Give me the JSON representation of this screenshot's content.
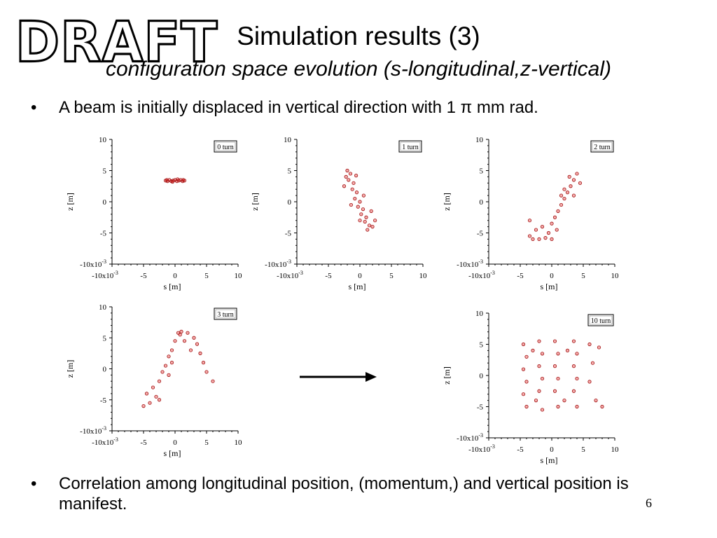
{
  "watermark": "DRAFT",
  "slide": {
    "title": "Simulation results (3)",
    "subtitle": "configuration space evolution (s-longitudinal,z-vertical)",
    "bullet1": "A beam is initially displaced in vertical direction with 1 π mm rad.",
    "bullet2": "Correlation among longitudinal position, (momentum,) and vertical position is manifest.",
    "bullet_symbol": "•",
    "page_number": "6"
  },
  "colors": {
    "marker": "#e01010",
    "marker_edge": "#a01010"
  },
  "chart_data": [
    {
      "type": "scatter",
      "legend": "0 turn",
      "xlabel": "s [m]",
      "ylabel": "z [m]",
      "xlim": [
        -0.01,
        0.01
      ],
      "ylim": [
        -0.01,
        0.01
      ],
      "xticks": [
        "-10x10-3",
        "-5",
        "0",
        "5",
        "10"
      ],
      "yticks": [
        "10",
        "5",
        "0",
        "-5",
        "-10x10-3"
      ],
      "points": [
        [
          -0.0015,
          0.0034
        ],
        [
          -0.0012,
          0.0033
        ],
        [
          -0.0009,
          0.0035
        ],
        [
          -0.0006,
          0.0033
        ],
        [
          -0.0003,
          0.0034
        ],
        [
          0.0,
          0.0035
        ],
        [
          0.0003,
          0.0033
        ],
        [
          0.0006,
          0.0034
        ],
        [
          0.0009,
          0.0035
        ],
        [
          0.0012,
          0.0033
        ],
        [
          0.0015,
          0.0034
        ],
        [
          -0.0013,
          0.0035
        ],
        [
          0.0013,
          0.0035
        ],
        [
          -0.0004,
          0.0032
        ],
        [
          0.0004,
          0.0036
        ]
      ]
    },
    {
      "type": "scatter",
      "legend": "1 turn",
      "xlabel": "s [m]",
      "ylabel": "z [m]",
      "xlim": [
        -0.01,
        0.01
      ],
      "ylim": [
        -0.01,
        0.01
      ],
      "xticks": [
        "-10x10-3",
        "-5",
        "0",
        "5",
        "10"
      ],
      "yticks": [
        "10",
        "5",
        "0",
        "-5",
        "-10x10-3"
      ],
      "points": [
        [
          -0.002,
          0.005
        ],
        [
          -0.0015,
          0.0045
        ],
        [
          -0.0018,
          0.0035
        ],
        [
          -0.001,
          0.003
        ],
        [
          -0.0012,
          0.002
        ],
        [
          -0.0005,
          0.0015
        ],
        [
          -0.0008,
          0.0005
        ],
        [
          0.0,
          0.0
        ],
        [
          -0.0003,
          -0.0008
        ],
        [
          0.0005,
          -0.0012
        ],
        [
          0.0002,
          -0.002
        ],
        [
          0.001,
          -0.0025
        ],
        [
          0.0008,
          -0.0032
        ],
        [
          0.0015,
          -0.0038
        ],
        [
          0.0012,
          -0.0045
        ],
        [
          0.002,
          -0.004
        ],
        [
          -0.0022,
          0.004
        ],
        [
          -0.0006,
          0.0042
        ],
        [
          0.0006,
          0.001
        ],
        [
          -0.0014,
          -0.0005
        ],
        [
          0.0018,
          -0.0015
        ],
        [
          0.0,
          -0.003
        ],
        [
          0.0024,
          -0.003
        ],
        [
          -0.0025,
          0.0025
        ]
      ]
    },
    {
      "type": "scatter",
      "legend": "2 turn",
      "xlabel": "s [m]",
      "ylabel": "z [m]",
      "xlim": [
        -0.01,
        0.01
      ],
      "ylim": [
        -0.01,
        0.01
      ],
      "xticks": [
        "-10x10-3",
        "-5",
        "0",
        "5",
        "10"
      ],
      "yticks": [
        "10",
        "5",
        "0",
        "-5",
        "-10x10-3"
      ],
      "points": [
        [
          -0.003,
          -0.006
        ],
        [
          -0.002,
          -0.006
        ],
        [
          -0.001,
          -0.0058
        ],
        [
          0.0,
          -0.006
        ],
        [
          -0.0025,
          -0.0045
        ],
        [
          -0.0035,
          -0.003
        ],
        [
          -0.0015,
          -0.004
        ],
        [
          0.0,
          -0.0035
        ],
        [
          0.0005,
          -0.0025
        ],
        [
          0.001,
          -0.0015
        ],
        [
          0.0015,
          -0.0005
        ],
        [
          0.002,
          0.0005
        ],
        [
          0.0025,
          0.0015
        ],
        [
          0.003,
          0.0025
        ],
        [
          0.0035,
          0.0035
        ],
        [
          0.004,
          0.0045
        ],
        [
          0.002,
          0.002
        ],
        [
          0.0035,
          0.001
        ],
        [
          0.0015,
          0.001
        ],
        [
          0.0045,
          0.003
        ],
        [
          -0.0005,
          -0.005
        ],
        [
          -0.0035,
          -0.0055
        ],
        [
          0.0008,
          -0.0045
        ],
        [
          0.0028,
          0.004
        ]
      ]
    },
    {
      "type": "scatter",
      "legend": "3 turn",
      "xlabel": "s [m]",
      "ylabel": "z [m]",
      "xlim": [
        -0.01,
        0.01
      ],
      "ylim": [
        -0.01,
        0.01
      ],
      "xticks": [
        "-10x10-3",
        "-5",
        "0",
        "5",
        "10"
      ],
      "yticks": [
        "10",
        "5",
        "0",
        "-5",
        "-10x10-3"
      ],
      "points": [
        [
          -0.005,
          -0.006
        ],
        [
          -0.004,
          -0.0055
        ],
        [
          -0.003,
          -0.0045
        ],
        [
          -0.0035,
          -0.003
        ],
        [
          -0.0025,
          -0.002
        ],
        [
          -0.002,
          -0.0005
        ],
        [
          -0.0015,
          0.0005
        ],
        [
          -0.001,
          0.002
        ],
        [
          -0.0005,
          0.003
        ],
        [
          0.0,
          0.0045
        ],
        [
          0.0005,
          0.0058
        ],
        [
          0.001,
          0.006
        ],
        [
          0.002,
          0.0058
        ],
        [
          0.003,
          0.005
        ],
        [
          0.0035,
          0.004
        ],
        [
          0.004,
          0.0025
        ],
        [
          0.0045,
          0.001
        ],
        [
          0.005,
          -0.0005
        ],
        [
          0.006,
          -0.002
        ],
        [
          -0.0005,
          0.001
        ],
        [
          0.0015,
          0.0045
        ],
        [
          -0.0025,
          -0.005
        ],
        [
          0.0025,
          0.003
        ],
        [
          -0.001,
          -0.001
        ],
        [
          0.0008,
          0.0055
        ],
        [
          -0.0045,
          -0.004
        ]
      ]
    },
    {
      "type": "scatter",
      "legend": "10 turn",
      "xlabel": "s [m]",
      "ylabel": "z [m]",
      "xlim": [
        -0.01,
        0.01
      ],
      "ylim": [
        -0.01,
        0.01
      ],
      "xticks": [
        "-10x10-3",
        "-5",
        "0",
        "5",
        "10"
      ],
      "yticks": [
        "10",
        "5",
        "0",
        "-5",
        "-10x10-3"
      ],
      "points": [
        [
          -0.0045,
          0.005
        ],
        [
          -0.004,
          0.003
        ],
        [
          -0.0045,
          0.001
        ],
        [
          -0.004,
          -0.001
        ],
        [
          -0.0045,
          -0.003
        ],
        [
          -0.004,
          -0.005
        ],
        [
          -0.002,
          0.0055
        ],
        [
          -0.0015,
          0.0035
        ],
        [
          -0.002,
          0.0015
        ],
        [
          -0.0015,
          -0.0005
        ],
        [
          -0.002,
          -0.0025
        ],
        [
          -0.0015,
          -0.0055
        ],
        [
          0.0005,
          0.0055
        ],
        [
          0.001,
          0.0035
        ],
        [
          0.0005,
          0.0015
        ],
        [
          0.001,
          -0.0005
        ],
        [
          0.0005,
          -0.0025
        ],
        [
          0.001,
          -0.005
        ],
        [
          0.0035,
          0.0055
        ],
        [
          0.004,
          0.0035
        ],
        [
          0.0035,
          0.0015
        ],
        [
          0.004,
          -0.0005
        ],
        [
          0.0035,
          -0.0025
        ],
        [
          0.004,
          -0.005
        ],
        [
          0.006,
          0.005
        ],
        [
          0.0065,
          0.002
        ],
        [
          0.006,
          -0.001
        ],
        [
          0.007,
          -0.004
        ],
        [
          0.008,
          -0.005
        ],
        [
          0.0075,
          0.0045
        ],
        [
          -0.003,
          0.004
        ],
        [
          0.002,
          -0.004
        ],
        [
          -0.0025,
          -0.004
        ],
        [
          0.0025,
          0.004
        ]
      ]
    }
  ]
}
